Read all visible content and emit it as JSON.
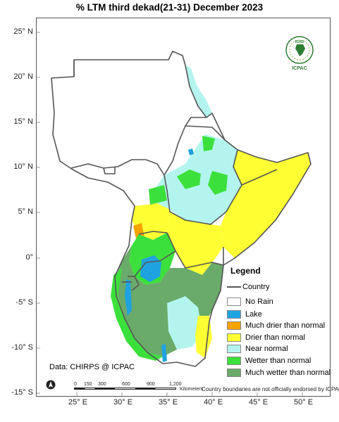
{
  "title": "% LTM  third dekad(21-31) December 2023",
  "lat_labels": [
    "25° N",
    "20° N",
    "15° N",
    "10° N",
    "5° N",
    "0°",
    "-5° S",
    "-10° S",
    "-15° S"
  ],
  "lon_labels": [
    "25° E",
    "30° E",
    "35° E",
    "40° E",
    "45° E",
    "50° E"
  ],
  "legend": {
    "title": "Legend",
    "country_label": "Country",
    "items": [
      {
        "label": "No Rain",
        "color": "#ffffff"
      },
      {
        "label": "Lake",
        "color": "#1fa3e0"
      },
      {
        "label": "Much drier than normal",
        "color": "#f5a300"
      },
      {
        "label": "Drier than normal",
        "color": "#ffff33"
      },
      {
        "label": "Near normal",
        "color": "#b3f5ee"
      },
      {
        "label": "Wetter than normal",
        "color": "#3ce03c"
      },
      {
        "label": "Much wetter than normal",
        "color": "#6aaa6a"
      }
    ]
  },
  "logo": {
    "top_text": "IGAD",
    "bottom_text": "ICPAC"
  },
  "credit": "Data: CHIRPS @ ICPAC",
  "disclaimer": "Country boundaries are not officially endorsed by ICPAC",
  "scale": {
    "ticks": [
      "0",
      "150",
      "300",
      "600",
      "900",
      "1,200"
    ],
    "unit": "Kilometers"
  },
  "north_arrow": "north-arrow-icon"
}
